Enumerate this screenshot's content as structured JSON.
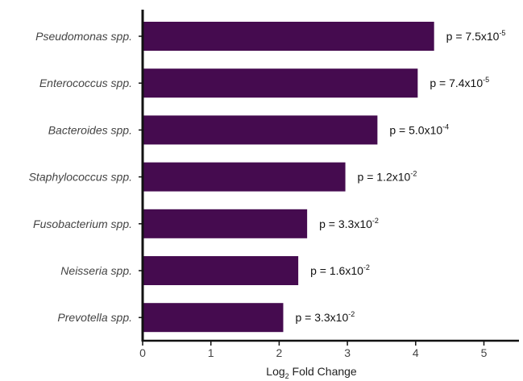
{
  "chart_data": {
    "type": "bar",
    "orientation": "horizontal",
    "categories": [
      "Pseudomonas spp.",
      "Enterococcus spp.",
      "Bacteroides spp.",
      "Staphylococcus spp.",
      "Fusobacterium spp.",
      "Neisseria spp.",
      "Prevotella spp."
    ],
    "values": [
      4.27,
      4.03,
      3.44,
      2.97,
      2.41,
      2.28,
      2.06
    ],
    "annotations": [
      {
        "prefix": "p = ",
        "mantissa": "7.5x10",
        "exponent": "-5"
      },
      {
        "prefix": "p = ",
        "mantissa": "7.4x10",
        "exponent": "-5"
      },
      {
        "prefix": "p = ",
        "mantissa": "5.0x10",
        "exponent": "-4"
      },
      {
        "prefix": "p = ",
        "mantissa": "1.2x10",
        "exponent": "-2"
      },
      {
        "prefix": "p = ",
        "mantissa": "3.3x10",
        "exponent": "-2"
      },
      {
        "prefix": "p = ",
        "mantissa": "1.6x10",
        "exponent": "-2"
      },
      {
        "prefix": "p = ",
        "mantissa": "3.3x10",
        "exponent": "-2"
      }
    ],
    "xlabel": {
      "pre": "Log",
      "sub": "2",
      "post": " Fold Change"
    },
    "xlim": [
      0,
      5.5
    ],
    "xticks": [
      0,
      1,
      2,
      3,
      4,
      5
    ],
    "bar_color": "#450b4f",
    "grid": false
  }
}
